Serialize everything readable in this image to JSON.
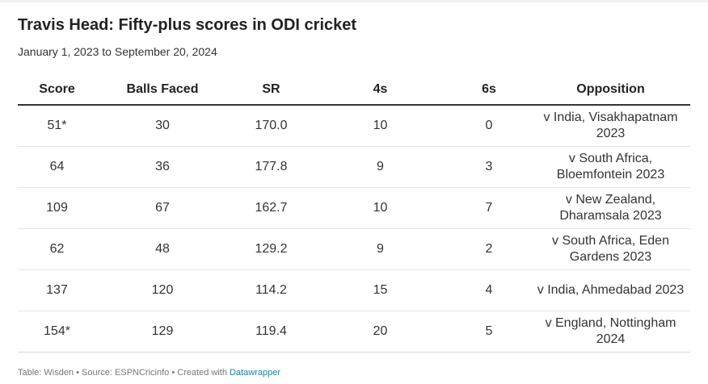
{
  "title": "Travis Head: Fifty-plus scores in ODI cricket",
  "subtitle": "January 1, 2023 to September 20, 2024",
  "table": {
    "headers": [
      "Score",
      "Balls Faced",
      "SR",
      "4s",
      "6s",
      "Opposition"
    ],
    "rows": [
      [
        "51*",
        "30",
        "170.0",
        "10",
        "0",
        "v India, Visakhapatnam 2023"
      ],
      [
        "64",
        "36",
        "177.8",
        "9",
        "3",
        "v South Africa, Bloemfontein 2023"
      ],
      [
        "109",
        "67",
        "162.7",
        "10",
        "7",
        "v New Zealand, Dharamsala 2023"
      ],
      [
        "62",
        "48",
        "129.2",
        "9",
        "2",
        "v South Africa, Eden Gardens 2023"
      ],
      [
        "137",
        "120",
        "114.2",
        "15",
        "4",
        "v India, Ahmedabad 2023"
      ],
      [
        "154*",
        "129",
        "119.4",
        "20",
        "5",
        "v England, Nottingham 2024"
      ]
    ]
  },
  "footer": {
    "text": "Table: Wisden • Source: ESPNCricinfo • Created with ",
    "link_label": "Datawrapper"
  },
  "colors": {
    "header_rule": "#333333",
    "row_divider": "#e5e5e5",
    "link": "#1d81a2"
  }
}
